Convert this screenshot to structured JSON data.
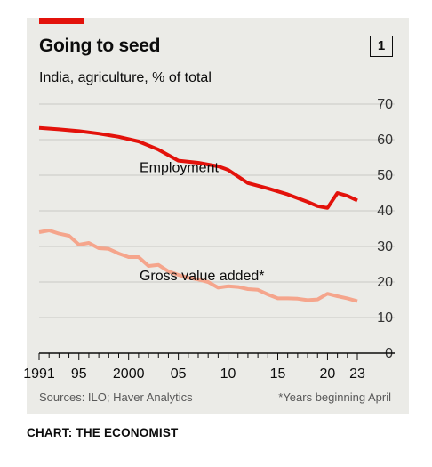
{
  "header": {
    "title": "Going to seed",
    "subtitle": "India, agriculture, % of total",
    "chart_number": "1"
  },
  "footer": {
    "source": "Sources: ILO; Haver Analytics",
    "footnote": "*Years beginning April",
    "credit": "CHART: THE ECONOMIST"
  },
  "colors": {
    "employment": "#e3120b",
    "gva": "#f5a58c",
    "accent": "#e3120b"
  },
  "chart_data": {
    "type": "line",
    "title": "Going to seed",
    "subtitle": "India, agriculture, % of total",
    "xlim": [
      1991,
      2023
    ],
    "ylim": [
      0,
      70
    ],
    "yticks": [
      0,
      10,
      20,
      30,
      40,
      50,
      60,
      70
    ],
    "xtick_labels": [
      {
        "year": 1991,
        "label": "1991"
      },
      {
        "year": 1995,
        "label": "95"
      },
      {
        "year": 2000,
        "label": "2000"
      },
      {
        "year": 2005,
        "label": "05"
      },
      {
        "year": 2010,
        "label": "10"
      },
      {
        "year": 2015,
        "label": "15"
      },
      {
        "year": 2020,
        "label": "20"
      },
      {
        "year": 2023,
        "label": "23"
      }
    ],
    "grid": true,
    "series": [
      {
        "name": "Employment",
        "color": "#e3120b",
        "x": [
          1991,
          1993,
          1995,
          1997,
          1999,
          2001,
          2003,
          2005,
          2007,
          2009,
          2010,
          2012,
          2014,
          2016,
          2018,
          2019,
          2020,
          2021,
          2022,
          2023
        ],
        "y": [
          63.3,
          62.9,
          62.4,
          61.7,
          60.8,
          59.5,
          57.2,
          54.1,
          53.5,
          52.5,
          51.5,
          47.8,
          46.3,
          44.6,
          42.5,
          41.3,
          40.8,
          45.0,
          44.2,
          42.9
        ]
      },
      {
        "name": "Gross value added*",
        "color": "#f5a58c",
        "x": [
          1991,
          1992,
          1993,
          1994,
          1995,
          1996,
          1997,
          1998,
          1999,
          2000,
          2001,
          2002,
          2003,
          2004,
          2005,
          2006,
          2007,
          2008,
          2009,
          2010,
          2011,
          2012,
          2013,
          2014,
          2015,
          2016,
          2017,
          2018,
          2019,
          2020,
          2021,
          2022,
          2023
        ],
        "y": [
          34.0,
          34.5,
          33.6,
          33.0,
          30.5,
          31.0,
          29.5,
          29.3,
          28.0,
          27.0,
          27.0,
          24.5,
          24.8,
          23.0,
          22.0,
          21.2,
          20.7,
          20.0,
          18.4,
          18.8,
          18.6,
          18.0,
          17.8,
          16.5,
          15.4,
          15.4,
          15.3,
          14.9,
          15.1,
          16.7,
          16.0,
          15.4,
          14.6
        ]
      }
    ],
    "annotations": [
      {
        "series": 0,
        "text": "Employment"
      },
      {
        "series": 1,
        "text": "Gross value added*"
      }
    ]
  }
}
